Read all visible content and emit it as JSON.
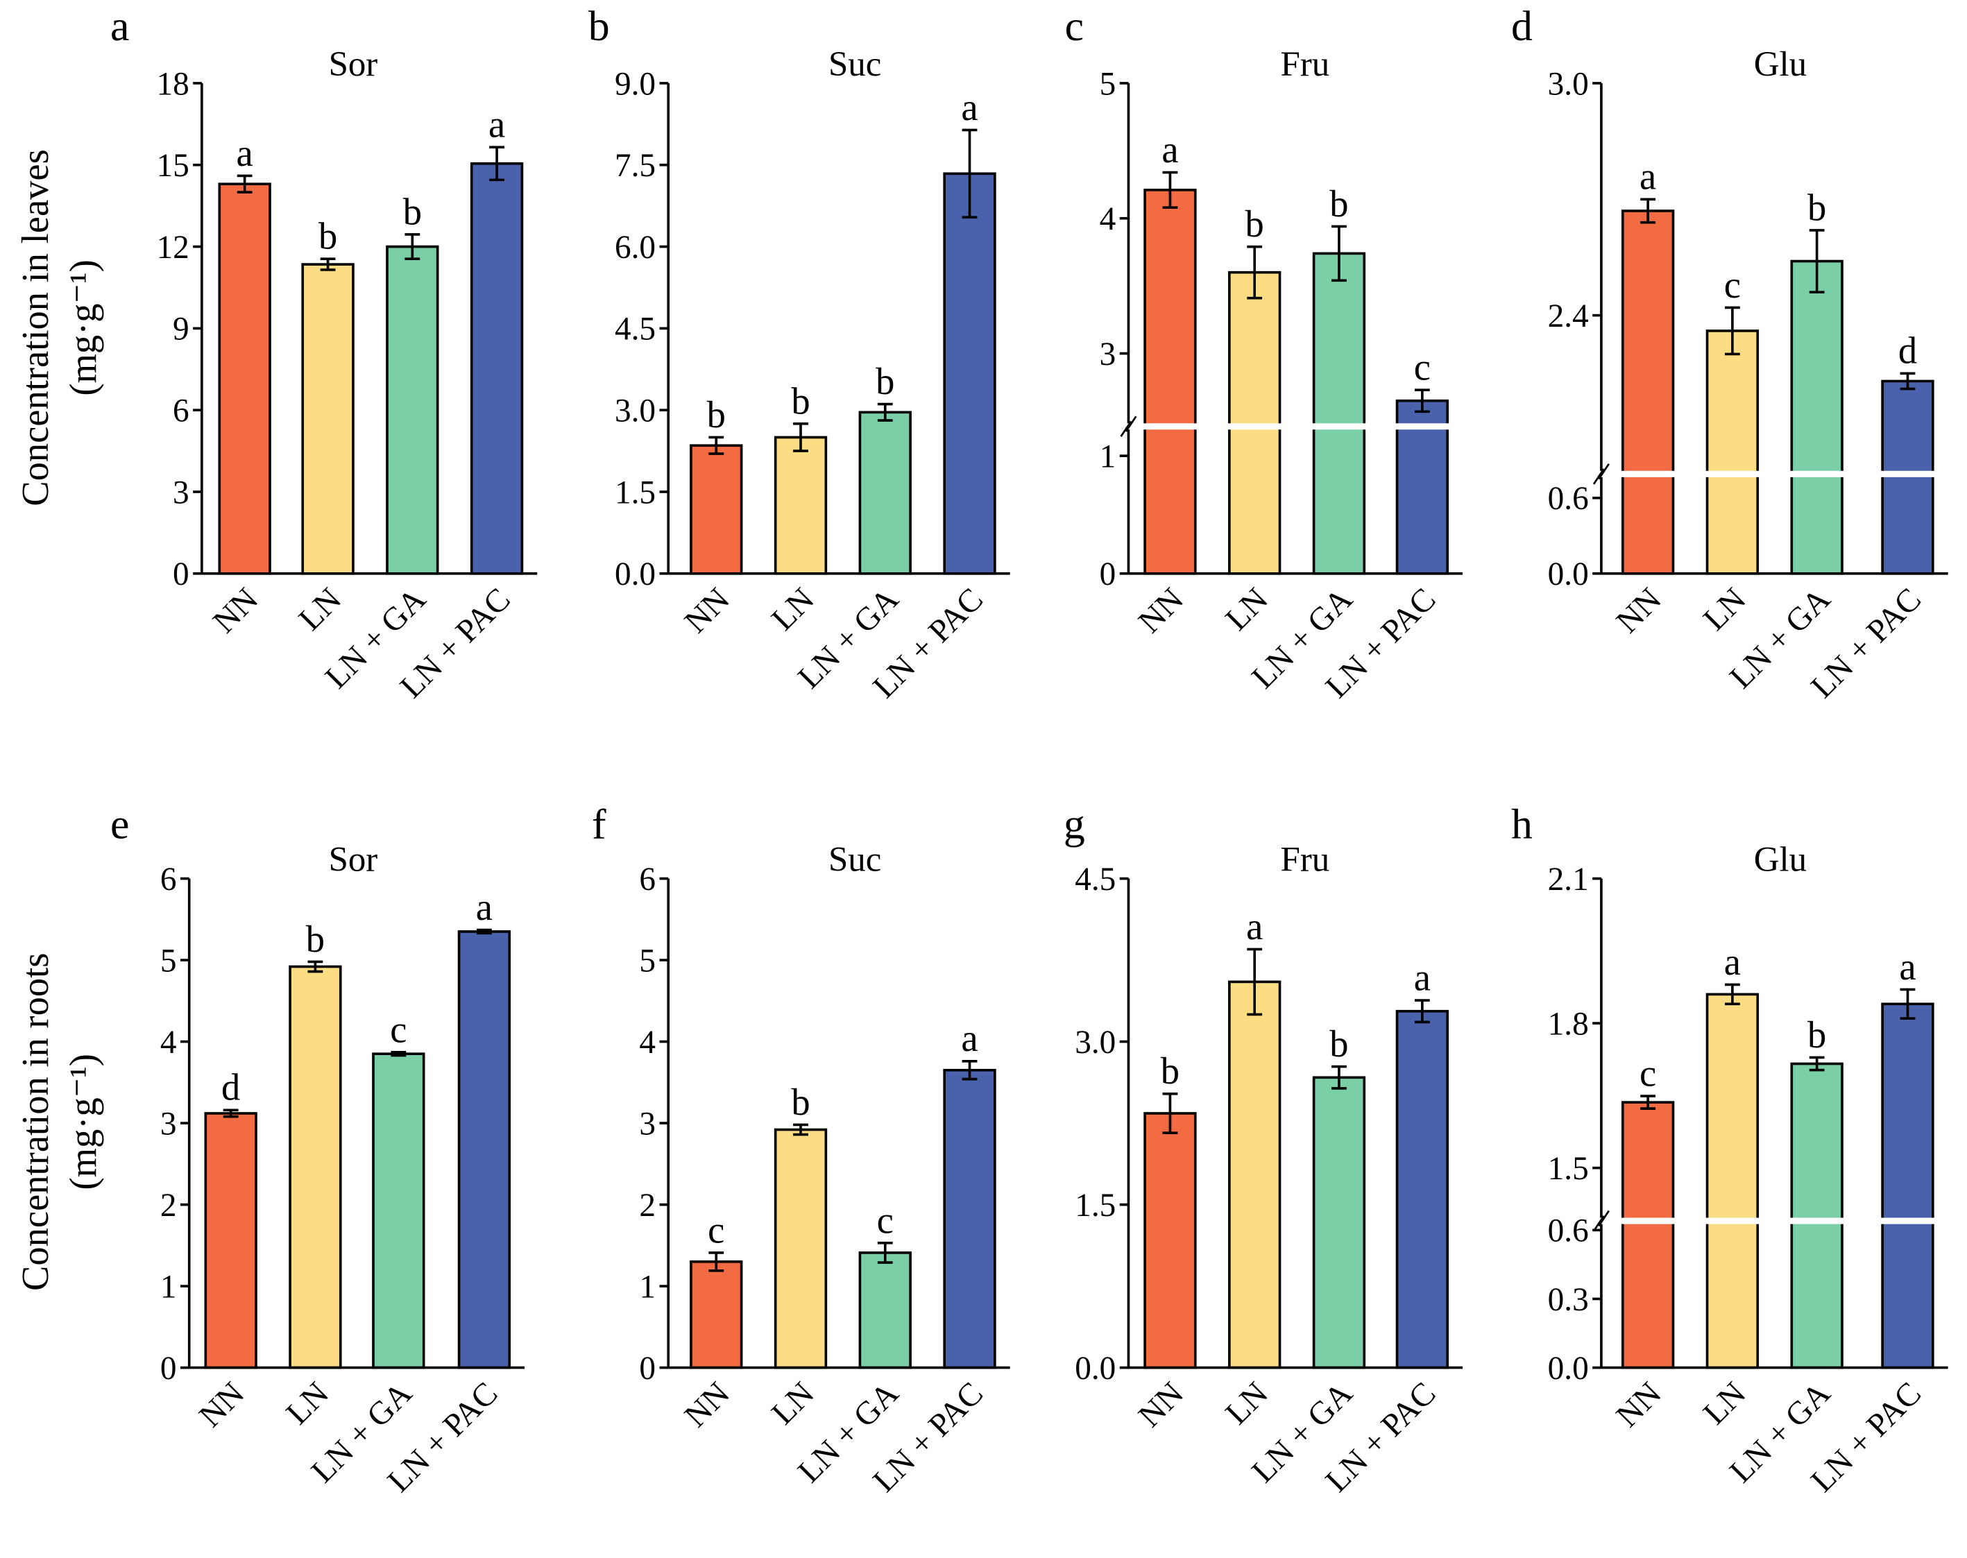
{
  "colors": {
    "NN": "#F26B43",
    "LN": "#FDDD84",
    "LN + GA": "#7BCFA6",
    "LN + PAC": "#4A62AC"
  },
  "ylabels": {
    "leaves": [
      "Concentration in leaves",
      "(mg·g⁻¹)"
    ],
    "roots": [
      "Concentration in roots",
      "(mg·g⁻¹)"
    ]
  },
  "chart_data": [
    {
      "type": "bar",
      "panel": "a",
      "title": "Sor",
      "categories": [
        "NN",
        "LN",
        "LN + GA",
        "LN + PAC"
      ],
      "values": [
        14.3,
        11.35,
        12.0,
        15.05
      ],
      "errors": [
        0.3,
        0.2,
        0.45,
        0.6
      ],
      "letters": [
        "a",
        "b",
        "b",
        "a"
      ],
      "ylim": [
        0,
        18
      ],
      "yticks": [
        "0",
        "3",
        "6",
        "9",
        "12",
        "15",
        "18"
      ],
      "ytick_values": [
        0,
        3,
        6,
        9,
        12,
        15,
        18
      ]
    },
    {
      "type": "bar",
      "panel": "b",
      "title": "Suc",
      "categories": [
        "NN",
        "LN",
        "LN + GA",
        "LN + PAC"
      ],
      "values": [
        2.35,
        2.5,
        2.96,
        7.34
      ],
      "errors": [
        0.15,
        0.25,
        0.15,
        0.8
      ],
      "letters": [
        "b",
        "b",
        "b",
        "a"
      ],
      "ylim": [
        0,
        9
      ],
      "yticks": [
        "0.0",
        "1.5",
        "3.0",
        "4.5",
        "6.0",
        "7.5",
        "9.0"
      ],
      "ytick_values": [
        0,
        1.5,
        3,
        4.5,
        6,
        7.5,
        9
      ]
    },
    {
      "type": "bar",
      "panel": "c",
      "title": "Fru",
      "categories": [
        "NN",
        "LN",
        "LN + GA",
        "LN + PAC"
      ],
      "values": [
        4.21,
        3.6,
        3.74,
        2.65
      ],
      "errors": [
        0.13,
        0.19,
        0.2,
        0.08
      ],
      "letters": [
        "a",
        "b",
        "b",
        "c"
      ],
      "ylim": [
        0,
        5
      ],
      "axis_break": [
        1.25,
        2.46
      ],
      "yticks": [
        "0",
        "1",
        "3",
        "4",
        "5"
      ],
      "ytick_values": [
        0,
        1,
        3,
        4,
        5
      ]
    },
    {
      "type": "bar",
      "panel": "d",
      "title": "Glu",
      "categories": [
        "NN",
        "LN",
        "LN + GA",
        "LN + PAC"
      ],
      "values": [
        2.67,
        2.36,
        2.54,
        2.23
      ],
      "errors": [
        0.03,
        0.06,
        0.08,
        0.02
      ],
      "letters": [
        "a",
        "c",
        "b",
        "d"
      ],
      "ylim": [
        0,
        3.0
      ],
      "axis_break": [
        0.79,
        1.99
      ],
      "yticks": [
        "0.0",
        "0.6",
        "2.4",
        "3.0"
      ],
      "ytick_values": [
        0,
        0.6,
        2.4,
        3.0
      ]
    },
    {
      "type": "bar",
      "panel": "e",
      "title": "Sor",
      "categories": [
        "NN",
        "LN",
        "LN + GA",
        "LN + PAC"
      ],
      "values": [
        3.12,
        4.92,
        3.85,
        5.35
      ],
      "errors": [
        0.04,
        0.06,
        0.02,
        0.02
      ],
      "letters": [
        "d",
        "b",
        "c",
        "a"
      ],
      "ylim": [
        0,
        6
      ],
      "yticks": [
        "0",
        "1",
        "2",
        "3",
        "4",
        "5",
        "6"
      ],
      "ytick_values": [
        0,
        1,
        2,
        3,
        4,
        5,
        6
      ]
    },
    {
      "type": "bar",
      "panel": "f",
      "title": "Suc",
      "categories": [
        "NN",
        "LN",
        "LN + GA",
        "LN + PAC"
      ],
      "values": [
        1.3,
        2.92,
        1.41,
        3.65
      ],
      "errors": [
        0.11,
        0.06,
        0.12,
        0.11
      ],
      "letters": [
        "c",
        "b",
        "c",
        "a"
      ],
      "ylim": [
        0,
        6
      ],
      "yticks": [
        "0",
        "1",
        "2",
        "3",
        "4",
        "5",
        "6"
      ],
      "ytick_values": [
        0,
        1,
        2,
        3,
        4,
        5,
        6
      ]
    },
    {
      "type": "bar",
      "panel": "g",
      "title": "Fru",
      "categories": [
        "NN",
        "LN",
        "LN + GA",
        "LN + PAC"
      ],
      "values": [
        2.34,
        3.55,
        2.67,
        3.28
      ],
      "errors": [
        0.18,
        0.3,
        0.1,
        0.1
      ],
      "letters": [
        "b",
        "a",
        "b",
        "a"
      ],
      "ylim": [
        0,
        4.5
      ],
      "yticks": [
        "0.0",
        "1.5",
        "3.0",
        "4.5"
      ],
      "ytick_values": [
        0,
        1.5,
        3,
        4.5
      ]
    },
    {
      "type": "bar",
      "panel": "h",
      "title": "Glu",
      "categories": [
        "NN",
        "LN",
        "LN + GA",
        "LN + PAC"
      ],
      "values": [
        1.636,
        1.86,
        1.716,
        1.84
      ],
      "errors": [
        0.013,
        0.02,
        0.013,
        0.03
      ],
      "letters": [
        "c",
        "a",
        "b",
        "a"
      ],
      "ylim": [
        0,
        2.1
      ],
      "axis_break": [
        0.64,
        1.39
      ],
      "yticks": [
        "0.0",
        "0.3",
        "0.6",
        "1.5",
        "1.8",
        "2.1"
      ],
      "ytick_values": [
        0,
        0.3,
        0.6,
        1.5,
        1.8,
        2.1
      ]
    }
  ]
}
